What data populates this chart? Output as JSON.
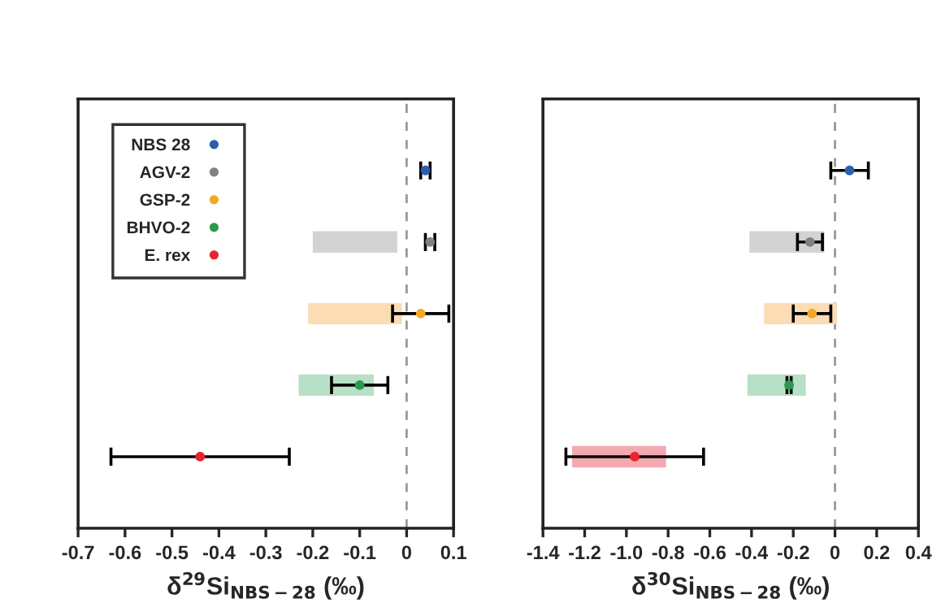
{
  "chart_data": [
    {
      "type": "scatter",
      "orientation": "horizontal",
      "categories": [
        null,
        null,
        null,
        null,
        null
      ],
      "xlabel": "δ$^{29}$Si$_{NBS−28}$ (‰)",
      "xlim": [
        -0.7,
        0.1
      ],
      "xticks": [
        -0.7,
        -0.6,
        -0.5,
        -0.4,
        -0.3,
        -0.2,
        -0.1,
        0,
        0.1
      ],
      "grid": false,
      "legend": "top left",
      "marker": "circle",
      "ref_lines": [
        {
          "axis": "x",
          "value": 0,
          "color": "#999999",
          "line_style": "dashed"
        }
      ],
      "series": [
        {
          "type": "bar",
          "base": [
            null,
            -0.2,
            -0.21,
            -0.23,
            null
          ],
          "values": [
            null,
            0.18,
            0.2,
            0.16,
            null
          ],
          "colors": [
            "#ffffff",
            "#d3d3d3",
            "#fbdcb5",
            "#b8e0c6",
            "#f2a9b0"
          ]
        },
        {
          "name": "NBS 28",
          "color": "#2b5fad",
          "values": [
            0.04,
            null,
            null,
            null,
            null
          ],
          "errors": [
            0.01,
            null,
            null,
            null,
            null
          ]
        },
        {
          "name": "AGV-2",
          "color": "#808080",
          "values": [
            null,
            0.05,
            null,
            null,
            null
          ],
          "errors": [
            null,
            0.01,
            null,
            null,
            null
          ]
        },
        {
          "name": "GSP-2",
          "color": "#f5a623",
          "values": [
            null,
            null,
            0.03,
            null,
            null
          ],
          "errors": [
            null,
            null,
            0.06,
            null,
            null
          ]
        },
        {
          "name": "BHVO-2",
          "color": "#2a9a4a",
          "values": [
            null,
            null,
            null,
            -0.1,
            null
          ],
          "errors": [
            null,
            null,
            null,
            0.06,
            null
          ]
        },
        {
          "name": "E. rex",
          "color": "#e8242c",
          "values": [
            null,
            null,
            null,
            null,
            -0.44
          ],
          "errors": [
            null,
            null,
            null,
            null,
            0.19
          ]
        }
      ]
    },
    {
      "type": "scatter",
      "orientation": "horizontal",
      "categories": [
        null,
        null,
        null,
        null,
        null
      ],
      "xlabel": "δ$^{30}$Si$_{NBS−28}$ (‰)",
      "xlim": [
        -1.4,
        0.4
      ],
      "xticks": [
        -1.4,
        -1.2,
        {
          "value": -1.0,
          "label": "-1.0"
        },
        -0.8,
        -0.6,
        -0.4,
        -0.2,
        0,
        0.2,
        0.4
      ],
      "grid": false,
      "marker": "circle",
      "ref_lines": [
        {
          "axis": "x",
          "value": 0,
          "color": "#999999",
          "line_style": "dashed"
        }
      ],
      "series": [
        {
          "type": "bar",
          "base": [
            null,
            -0.41,
            -0.34,
            -0.42,
            -1.26
          ],
          "values": [
            null,
            0.36,
            0.35,
            0.28,
            0.45
          ],
          "colors": [
            "#ffffff",
            "#d3d3d3",
            "#fbdcb5",
            "#b8e0c6",
            "#f2a9b0"
          ]
        },
        {
          "color": "#2b5fad",
          "values": [
            0.07,
            null,
            null,
            null,
            null
          ],
          "errors": [
            0.09,
            null,
            null,
            null,
            null
          ]
        },
        {
          "color": "#808080",
          "values": [
            null,
            -0.12,
            null,
            null,
            null
          ],
          "errors": [
            null,
            0.06,
            null,
            null,
            null
          ]
        },
        {
          "color": "#f5a623",
          "values": [
            null,
            null,
            -0.11,
            null,
            null
          ],
          "errors": [
            null,
            null,
            0.09,
            null,
            null
          ]
        },
        {
          "color": "#2a9a4a",
          "values": [
            null,
            null,
            null,
            -0.22,
            null
          ],
          "errors": [
            null,
            null,
            null,
            0.01,
            null
          ]
        },
        {
          "color": "#e8242c",
          "values": [
            null,
            null,
            null,
            null,
            -0.96
          ],
          "errors": [
            null,
            null,
            null,
            null,
            0.33
          ]
        }
      ]
    }
  ]
}
